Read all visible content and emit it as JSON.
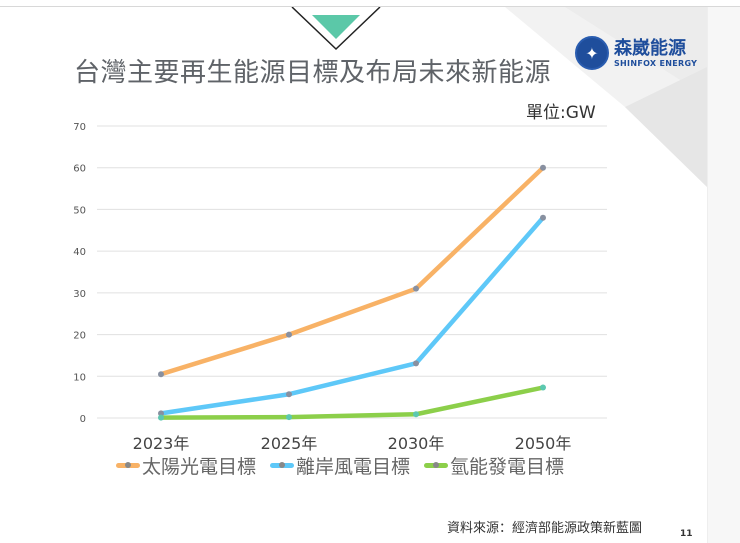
{
  "slide": {
    "title": "台灣主要再生能源目標及布局未來新能源",
    "unit_label": "單位:GW",
    "source": "資料來源：經濟部能源政策新藍圖",
    "page_number": "11",
    "logo": {
      "name_cn": "森崴能源",
      "name_en": "SHINFOX ENERGY",
      "ring_text": "SHINFOX"
    },
    "accent_color": "#5bc8a8"
  },
  "chart_data": {
    "type": "line",
    "categories": [
      "2023年",
      "2025年",
      "2030年",
      "2050年"
    ],
    "ylim": [
      0,
      70
    ],
    "yticks": [
      0,
      10,
      20,
      30,
      40,
      50,
      60,
      70
    ],
    "grid": true,
    "legend_position": "bottom",
    "series": [
      {
        "name": "太陽光電目標",
        "values": [
          10.5,
          20,
          31,
          60
        ],
        "color": "#f8b266"
      },
      {
        "name": "離岸風電目標",
        "values": [
          1.1,
          5.7,
          13.1,
          48
        ],
        "color": "#5ec8f8"
      },
      {
        "name": "氫能發電目標",
        "values": [
          0.1,
          0.2,
          0.9,
          7.3
        ],
        "color": "#8ccf4a"
      }
    ]
  }
}
